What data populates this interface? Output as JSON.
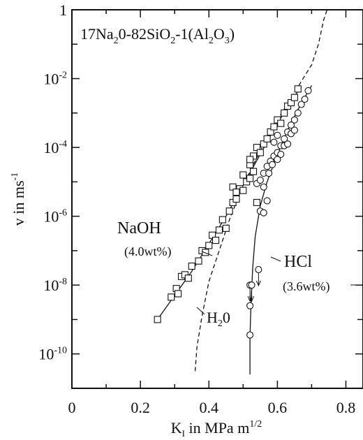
{
  "chart_data": {
    "type": "scatter",
    "title": {
      "pre": "17Na",
      "s1": "2",
      "mid1": "0-82SiO",
      "s2": "2",
      "mid2": "-1(Al",
      "s3": "2",
      "mid3": "O",
      "s4": "3",
      "post": ")"
    },
    "xlabel": {
      "main": "K",
      "sub": "I",
      "rest": " in MPa m",
      "sup": "1/2"
    },
    "ylabel": {
      "main": "v in ms",
      "sup": "-1"
    },
    "xlim": [
      0,
      0.85
    ],
    "ylim_log10": [
      -11,
      0
    ],
    "y_scale": "log",
    "x_ticks": [
      {
        "v": 0,
        "label": "0"
      },
      {
        "v": 0.2,
        "label": "0.2"
      },
      {
        "v": 0.4,
        "label": "0.4"
      },
      {
        "v": 0.6,
        "label": "0.6"
      },
      {
        "v": 0.8,
        "label": "0.8"
      }
    ],
    "y_ticks": [
      {
        "e": 0,
        "base": "1",
        "exp": ""
      },
      {
        "e": -2,
        "base": "10",
        "exp": "-2"
      },
      {
        "e": -4,
        "base": "10",
        "exp": "-4"
      },
      {
        "e": -6,
        "base": "10",
        "exp": "-6"
      },
      {
        "e": -8,
        "base": "10",
        "exp": "-8"
      },
      {
        "e": -10,
        "base": "10",
        "exp": "-10"
      }
    ],
    "annotations": {
      "naoh": "NaOH",
      "naoh_conc": "(4.0wt%)",
      "hcl": "HCl",
      "hcl_conc": "(3.6wt%)",
      "h2o": {
        "main": "H",
        "sub": "2",
        "rest": "0"
      }
    },
    "series": [
      {
        "marker": "square",
        "points": [
          [
            0.25,
            -9.0
          ],
          [
            0.29,
            -8.35
          ],
          [
            0.305,
            -8.1
          ],
          [
            0.31,
            -8.25
          ],
          [
            0.32,
            -7.75
          ],
          [
            0.33,
            -7.7
          ],
          [
            0.34,
            -7.8
          ],
          [
            0.35,
            -7.45
          ],
          [
            0.37,
            -7.3
          ],
          [
            0.38,
            -7.0
          ],
          [
            0.39,
            -7.05
          ],
          [
            0.4,
            -6.85
          ],
          [
            0.41,
            -6.55
          ],
          [
            0.42,
            -6.7
          ],
          [
            0.43,
            -6.4
          ],
          [
            0.44,
            -6.1
          ],
          [
            0.45,
            -6.35
          ],
          [
            0.46,
            -5.85
          ],
          [
            0.47,
            -5.6
          ],
          [
            0.48,
            -5.5
          ],
          [
            0.49,
            -5.2
          ],
          [
            0.5,
            -5.25
          ],
          [
            0.51,
            -5.0
          ],
          [
            0.52,
            -4.9
          ],
          [
            0.52,
            -4.5
          ],
          [
            0.53,
            -4.7
          ],
          [
            0.53,
            -4.25
          ],
          [
            0.54,
            -4.0
          ],
          [
            0.55,
            -4.15
          ],
          [
            0.56,
            -3.9
          ],
          [
            0.57,
            -3.75
          ],
          [
            0.58,
            -3.55
          ],
          [
            0.59,
            -3.4
          ],
          [
            0.6,
            -3.2
          ],
          [
            0.61,
            -3.3
          ],
          [
            0.62,
            -3.0
          ],
          [
            0.63,
            -2.8
          ],
          [
            0.64,
            -2.7
          ],
          [
            0.65,
            -2.55
          ],
          [
            0.66,
            -2.3
          ],
          [
            0.5,
            -4.8
          ],
          [
            0.47,
            -5.15
          ],
          [
            0.54,
            -5.6
          ],
          [
            0.48,
            -5.3
          ],
          [
            0.52,
            -4.35
          ]
        ]
      },
      {
        "marker": "circle",
        "points": [
          [
            0.52,
            -8.0
          ],
          [
            0.525,
            -8.0
          ],
          [
            0.52,
            -8.6
          ],
          [
            0.52,
            -9.45
          ],
          [
            0.545,
            -7.55
          ],
          [
            0.55,
            -5.85
          ],
          [
            0.56,
            -5.9
          ],
          [
            0.57,
            -5.55
          ],
          [
            0.54,
            -5.05
          ],
          [
            0.55,
            -4.95
          ],
          [
            0.56,
            -4.75
          ],
          [
            0.57,
            -4.55
          ],
          [
            0.58,
            -4.4
          ],
          [
            0.59,
            -4.25
          ],
          [
            0.6,
            -4.15
          ],
          [
            0.61,
            -3.95
          ],
          [
            0.62,
            -3.75
          ],
          [
            0.63,
            -3.55
          ],
          [
            0.64,
            -3.35
          ],
          [
            0.65,
            -3.2
          ],
          [
            0.66,
            -3.0
          ],
          [
            0.67,
            -2.75
          ],
          [
            0.68,
            -2.6
          ],
          [
            0.69,
            -2.35
          ],
          [
            0.575,
            -4.75
          ],
          [
            0.585,
            -4.5
          ],
          [
            0.6,
            -4.35
          ],
          [
            0.61,
            -4.2
          ],
          [
            0.62,
            -3.95
          ],
          [
            0.63,
            -3.9
          ],
          [
            0.64,
            -3.6
          ],
          [
            0.65,
            -3.5
          ],
          [
            0.56,
            -5.15
          ],
          [
            0.59,
            -3.85
          ],
          [
            0.6,
            -3.65
          ]
        ]
      }
    ],
    "curves": [
      {
        "name": "NaOH",
        "style": "solid",
        "points": [
          [
            0.25,
            -9.0
          ],
          [
            0.3,
            -8.3
          ],
          [
            0.35,
            -7.6
          ],
          [
            0.4,
            -6.8
          ],
          [
            0.45,
            -6.0
          ],
          [
            0.5,
            -5.1
          ],
          [
            0.55,
            -4.2
          ],
          [
            0.6,
            -3.3
          ],
          [
            0.65,
            -2.5
          ],
          [
            0.67,
            -2.25
          ]
        ]
      },
      {
        "name": "HCl",
        "style": "solid",
        "points": [
          [
            0.52,
            -10.6
          ],
          [
            0.52,
            -9.5
          ],
          [
            0.523,
            -8.5
          ],
          [
            0.528,
            -7.5
          ],
          [
            0.535,
            -6.6
          ],
          [
            0.55,
            -5.7
          ],
          [
            0.57,
            -5.0
          ],
          [
            0.6,
            -4.2
          ],
          [
            0.63,
            -3.5
          ],
          [
            0.66,
            -2.9
          ],
          [
            0.7,
            -2.2
          ]
        ]
      },
      {
        "name": "H2O",
        "style": "dashed",
        "points": [
          [
            0.36,
            -10.5
          ],
          [
            0.365,
            -9.8
          ],
          [
            0.38,
            -8.9
          ],
          [
            0.4,
            -7.9
          ],
          [
            0.43,
            -7.0
          ],
          [
            0.46,
            -6.1
          ],
          [
            0.5,
            -5.1
          ],
          [
            0.55,
            -4.1
          ],
          [
            0.6,
            -3.2
          ],
          [
            0.65,
            -2.4
          ],
          [
            0.7,
            -1.6
          ],
          [
            0.72,
            -1.0
          ],
          [
            0.735,
            -0.3
          ],
          [
            0.745,
            0.0
          ]
        ]
      }
    ]
  }
}
